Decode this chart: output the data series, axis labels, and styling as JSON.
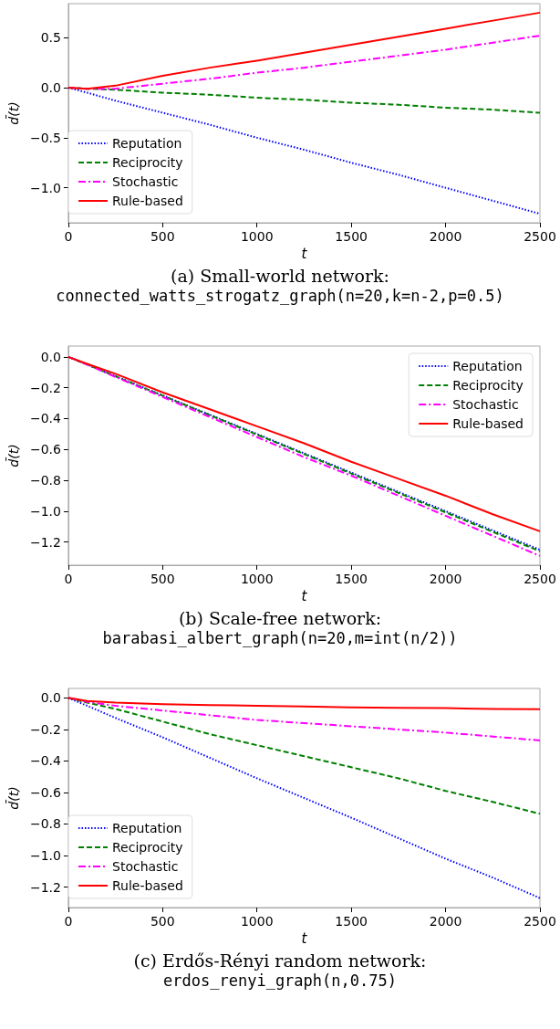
{
  "chart_data": [
    {
      "type": "line",
      "title": "(a) Small-world network:",
      "subtitle": "connected_watts_strogatz_graph(n=20,k=n-2,p=0.5)",
      "xlabel": "t",
      "ylabel": "d̄(t)",
      "x": [
        0,
        100,
        250,
        500,
        750,
        1000,
        1250,
        1500,
        1750,
        2000,
        2250,
        2500
      ],
      "xlim": [
        0,
        2500
      ],
      "xticks": [
        0,
        500,
        1000,
        1500,
        2000,
        2500
      ],
      "ylim": [
        -1.35,
        0.84
      ],
      "yticks": [
        {
          "value": -1.0,
          "label": "−1.0"
        },
        {
          "value": -0.5,
          "label": "−0.5"
        },
        {
          "value": 0,
          "label": "0.0"
        },
        {
          "value": 0.5,
          "label": "0.5"
        }
      ],
      "grid": false,
      "legend": "bottom left",
      "marker": "none",
      "series": [
        {
          "name": "Reputation",
          "color": "#0000ff",
          "line_style": "dotted",
          "values": [
            0,
            -0.05,
            -0.13,
            -0.25,
            -0.37,
            -0.5,
            -0.62,
            -0.75,
            -0.87,
            -1.0,
            -1.13,
            -1.26
          ]
        },
        {
          "name": "Reciprocity",
          "color": "#008000",
          "line_style": "dashed",
          "values": [
            0,
            -0.01,
            -0.02,
            -0.05,
            -0.07,
            -0.1,
            -0.12,
            -0.15,
            -0.17,
            -0.2,
            -0.22,
            -0.25
          ]
        },
        {
          "name": "Stochastic",
          "color": "#ff00ff",
          "line_style": "dashdot",
          "values": [
            0,
            -0.01,
            -0.01,
            0.04,
            0.09,
            0.15,
            0.2,
            0.26,
            0.32,
            0.38,
            0.45,
            0.52
          ]
        },
        {
          "name": "Rule-based",
          "color": "#ff0000",
          "line_style": "solid",
          "values": [
            0,
            -0.01,
            0.02,
            0.12,
            0.2,
            0.27,
            0.35,
            0.43,
            0.51,
            0.59,
            0.67,
            0.75
          ]
        }
      ]
    },
    {
      "type": "line",
      "title": "(b) Scale-free network:",
      "subtitle": "barabasi_albert_graph(n=20,m=int(n/2))",
      "xlabel": "t",
      "ylabel": "d̄(t)",
      "x": [
        0,
        100,
        250,
        500,
        750,
        1000,
        1250,
        1500,
        1750,
        2000,
        2250,
        2500
      ],
      "xlim": [
        0,
        2500
      ],
      "xticks": [
        0,
        500,
        1000,
        1500,
        2000,
        2500
      ],
      "ylim": [
        -1.35,
        0.07
      ],
      "yticks": [
        {
          "value": -1.2,
          "label": "−1.2"
        },
        {
          "value": -1.0,
          "label": "−1.0"
        },
        {
          "value": -0.8,
          "label": "−0.8"
        },
        {
          "value": -0.6,
          "label": "−0.6"
        },
        {
          "value": -0.4,
          "label": "−0.4"
        },
        {
          "value": -0.2,
          "label": "−0.2"
        },
        {
          "value": 0,
          "label": "0.0"
        }
      ],
      "grid": false,
      "legend": "top right",
      "marker": "none",
      "series": [
        {
          "name": "Reputation",
          "color": "#0000ff",
          "line_style": "dotted",
          "values": [
            0,
            -0.05,
            -0.125,
            -0.25,
            -0.375,
            -0.5,
            -0.625,
            -0.75,
            -0.875,
            -1.0,
            -1.125,
            -1.25
          ]
        },
        {
          "name": "Reciprocity",
          "color": "#008000",
          "line_style": "dashed",
          "values": [
            0,
            -0.05,
            -0.126,
            -0.252,
            -0.378,
            -0.504,
            -0.63,
            -0.756,
            -0.882,
            -1.008,
            -1.134,
            -1.26
          ]
        },
        {
          "name": "Stochastic",
          "color": "#ff00ff",
          "line_style": "dashdot",
          "values": [
            0,
            -0.05,
            -0.13,
            -0.26,
            -0.39,
            -0.52,
            -0.65,
            -0.77,
            -0.9,
            -1.03,
            -1.16,
            -1.29
          ]
        },
        {
          "name": "Rule-based",
          "color": "#ff0000",
          "line_style": "solid",
          "values": [
            0,
            -0.045,
            -0.11,
            -0.23,
            -0.34,
            -0.45,
            -0.56,
            -0.68,
            -0.79,
            -0.9,
            -1.02,
            -1.13
          ]
        }
      ]
    },
    {
      "type": "line",
      "title": "(c) Erdős-Rényi random network:",
      "subtitle": "erdos_renyi_graph(n,0.75)",
      "xlabel": "t",
      "ylabel": "d̄(t)",
      "x": [
        0,
        100,
        250,
        500,
        750,
        1000,
        1250,
        1500,
        1750,
        2000,
        2250,
        2500
      ],
      "xlim": [
        0,
        2500
      ],
      "xticks": [
        0,
        500,
        1000,
        1500,
        2000,
        2500
      ],
      "ylim": [
        -1.33,
        0.06
      ],
      "yticks": [
        {
          "value": -1.2,
          "label": "−1.2"
        },
        {
          "value": -1.0,
          "label": "−1.0"
        },
        {
          "value": -0.8,
          "label": "−0.8"
        },
        {
          "value": -0.6,
          "label": "−0.6"
        },
        {
          "value": -0.4,
          "label": "−0.4"
        },
        {
          "value": -0.2,
          "label": "−0.2"
        },
        {
          "value": 0,
          "label": "0.0"
        }
      ],
      "grid": false,
      "legend": "bottom left",
      "marker": "none",
      "series": [
        {
          "name": "Reputation",
          "color": "#0000ff",
          "line_style": "dotted",
          "values": [
            0,
            -0.05,
            -0.127,
            -0.25,
            -0.38,
            -0.51,
            -0.635,
            -0.76,
            -0.89,
            -1.02,
            -1.14,
            -1.27
          ]
        },
        {
          "name": "Reciprocity",
          "color": "#008000",
          "line_style": "dashed",
          "values": [
            0,
            -0.03,
            -0.07,
            -0.15,
            -0.23,
            -0.3,
            -0.37,
            -0.44,
            -0.51,
            -0.59,
            -0.66,
            -0.735
          ]
        },
        {
          "name": "Stochastic",
          "color": "#ff00ff",
          "line_style": "dashdot",
          "values": [
            0,
            -0.025,
            -0.05,
            -0.08,
            -0.11,
            -0.14,
            -0.16,
            -0.18,
            -0.2,
            -0.22,
            -0.245,
            -0.27
          ]
        },
        {
          "name": "Rule-based",
          "color": "#ff0000",
          "line_style": "solid",
          "values": [
            0,
            -0.02,
            -0.03,
            -0.04,
            -0.045,
            -0.05,
            -0.055,
            -0.06,
            -0.063,
            -0.065,
            -0.07,
            -0.072
          ]
        }
      ]
    }
  ]
}
